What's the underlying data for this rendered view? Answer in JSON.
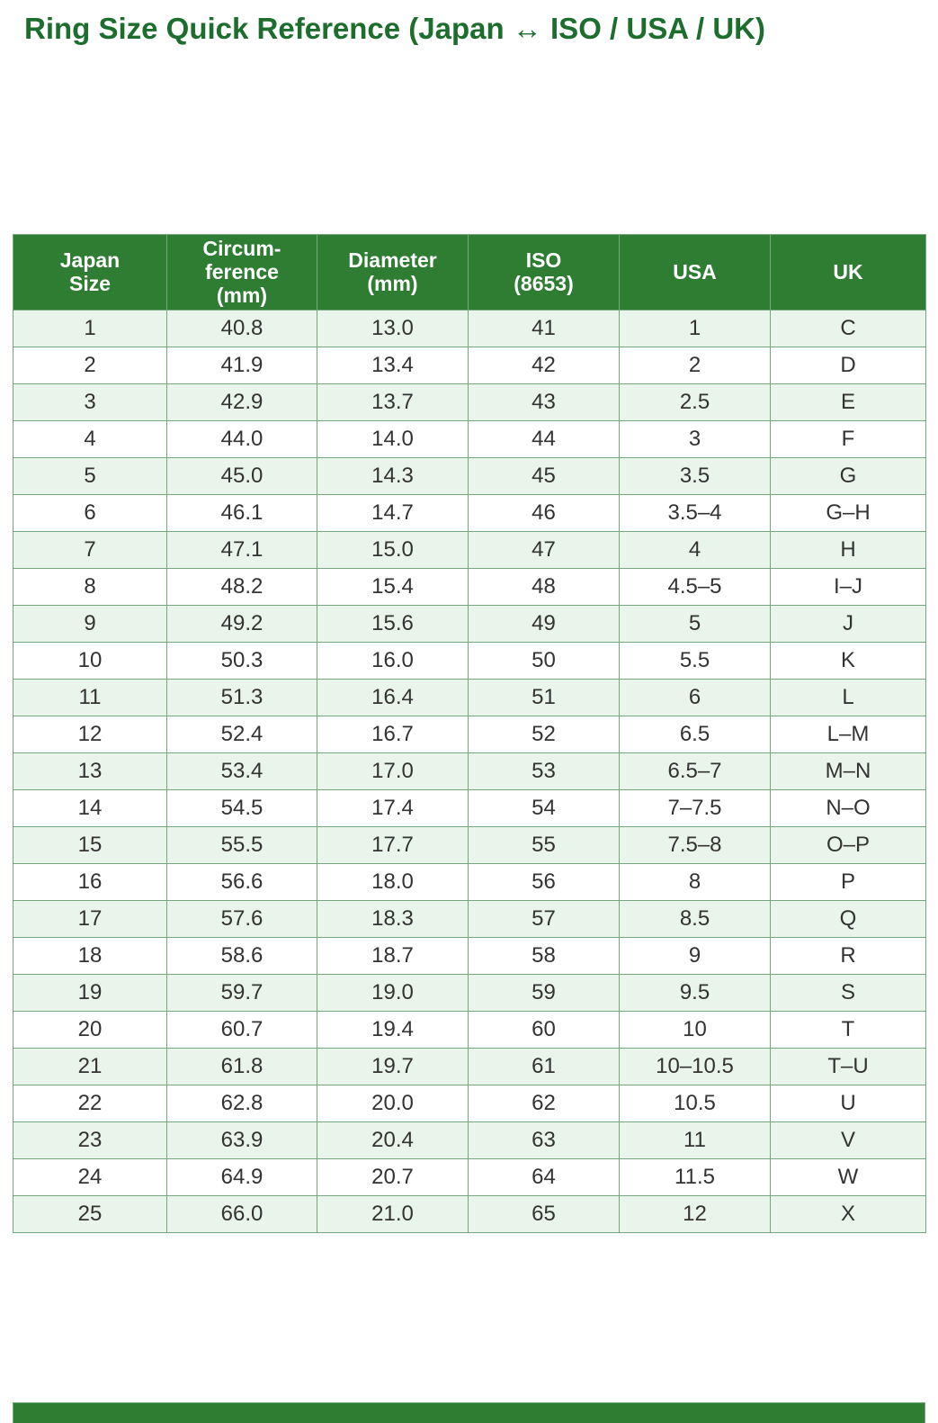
{
  "page": {
    "title": "Ring Size Quick Reference (Japan ↔ ISO / USA / UK)"
  },
  "colors": {
    "title": "#1d6d2f",
    "header_bg": "#2e7d32",
    "header_text": "#ffffff",
    "row_alt_bg": "#e9f4ea",
    "border": "#77a57d"
  },
  "table": {
    "headers": [
      "Japan\nSize",
      "Circum-\nference\n(mm)",
      "Diameter\n(mm)",
      "ISO\n(8653)",
      "USA",
      "UK"
    ],
    "rows": [
      [
        "1",
        "40.8",
        "13.0",
        "41",
        "1",
        "C"
      ],
      [
        "2",
        "41.9",
        "13.4",
        "42",
        "2",
        "D"
      ],
      [
        "3",
        "42.9",
        "13.7",
        "43",
        "2.5",
        "E"
      ],
      [
        "4",
        "44.0",
        "14.0",
        "44",
        "3",
        "F"
      ],
      [
        "5",
        "45.0",
        "14.3",
        "45",
        "3.5",
        "G"
      ],
      [
        "6",
        "46.1",
        "14.7",
        "46",
        "3.5–4",
        "G–H"
      ],
      [
        "7",
        "47.1",
        "15.0",
        "47",
        "4",
        "H"
      ],
      [
        "8",
        "48.2",
        "15.4",
        "48",
        "4.5–5",
        "I–J"
      ],
      [
        "9",
        "49.2",
        "15.6",
        "49",
        "5",
        "J"
      ],
      [
        "10",
        "50.3",
        "16.0",
        "50",
        "5.5",
        "K"
      ],
      [
        "11",
        "51.3",
        "16.4",
        "51",
        "6",
        "L"
      ],
      [
        "12",
        "52.4",
        "16.7",
        "52",
        "6.5",
        "L–M"
      ],
      [
        "13",
        "53.4",
        "17.0",
        "53",
        "6.5–7",
        "M–N"
      ],
      [
        "14",
        "54.5",
        "17.4",
        "54",
        "7–7.5",
        "N–O"
      ],
      [
        "15",
        "55.5",
        "17.7",
        "55",
        "7.5–8",
        "O–P"
      ],
      [
        "16",
        "56.6",
        "18.0",
        "56",
        "8",
        "P"
      ],
      [
        "17",
        "57.6",
        "18.3",
        "57",
        "8.5",
        "Q"
      ],
      [
        "18",
        "58.6",
        "18.7",
        "58",
        "9",
        "R"
      ],
      [
        "19",
        "59.7",
        "19.0",
        "59",
        "9.5",
        "S"
      ],
      [
        "20",
        "60.7",
        "19.4",
        "60",
        "10",
        "T"
      ],
      [
        "21",
        "61.8",
        "19.7",
        "61",
        "10–10.5",
        "T–U"
      ],
      [
        "22",
        "62.8",
        "20.0",
        "62",
        "10.5",
        "U"
      ],
      [
        "23",
        "63.9",
        "20.4",
        "63",
        "11",
        "V"
      ],
      [
        "24",
        "64.9",
        "20.7",
        "64",
        "11.5",
        "W"
      ],
      [
        "25",
        "66.0",
        "21.0",
        "65",
        "12",
        "X"
      ]
    ]
  }
}
